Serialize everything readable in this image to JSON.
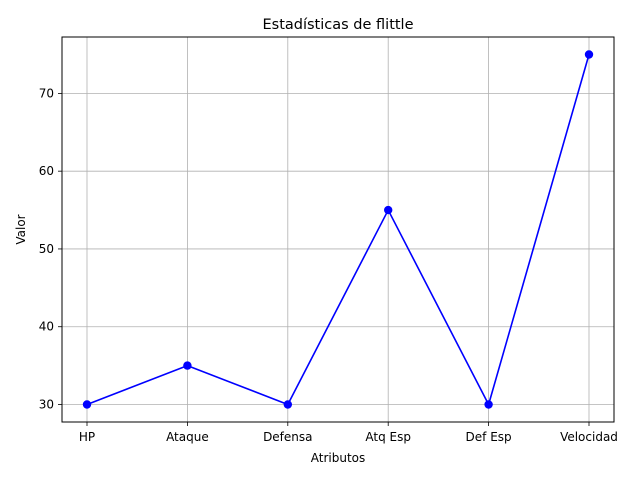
{
  "chart_data": {
    "type": "line",
    "title": "Estadísticas de flittle",
    "xlabel": "Atributos",
    "ylabel": "Valor",
    "categories": [
      "HP",
      "Ataque",
      "Defensa",
      "Atq Esp",
      "Def Esp",
      "Velocidad"
    ],
    "series": [
      {
        "values": [
          30,
          35,
          30,
          55,
          30,
          75
        ],
        "color": "#0000ff",
        "marker": "circle"
      }
    ],
    "ylim": [
      27.75,
      77.25
    ],
    "yticks": [
      30,
      40,
      50,
      60,
      70
    ],
    "grid": true,
    "legend": "none"
  }
}
